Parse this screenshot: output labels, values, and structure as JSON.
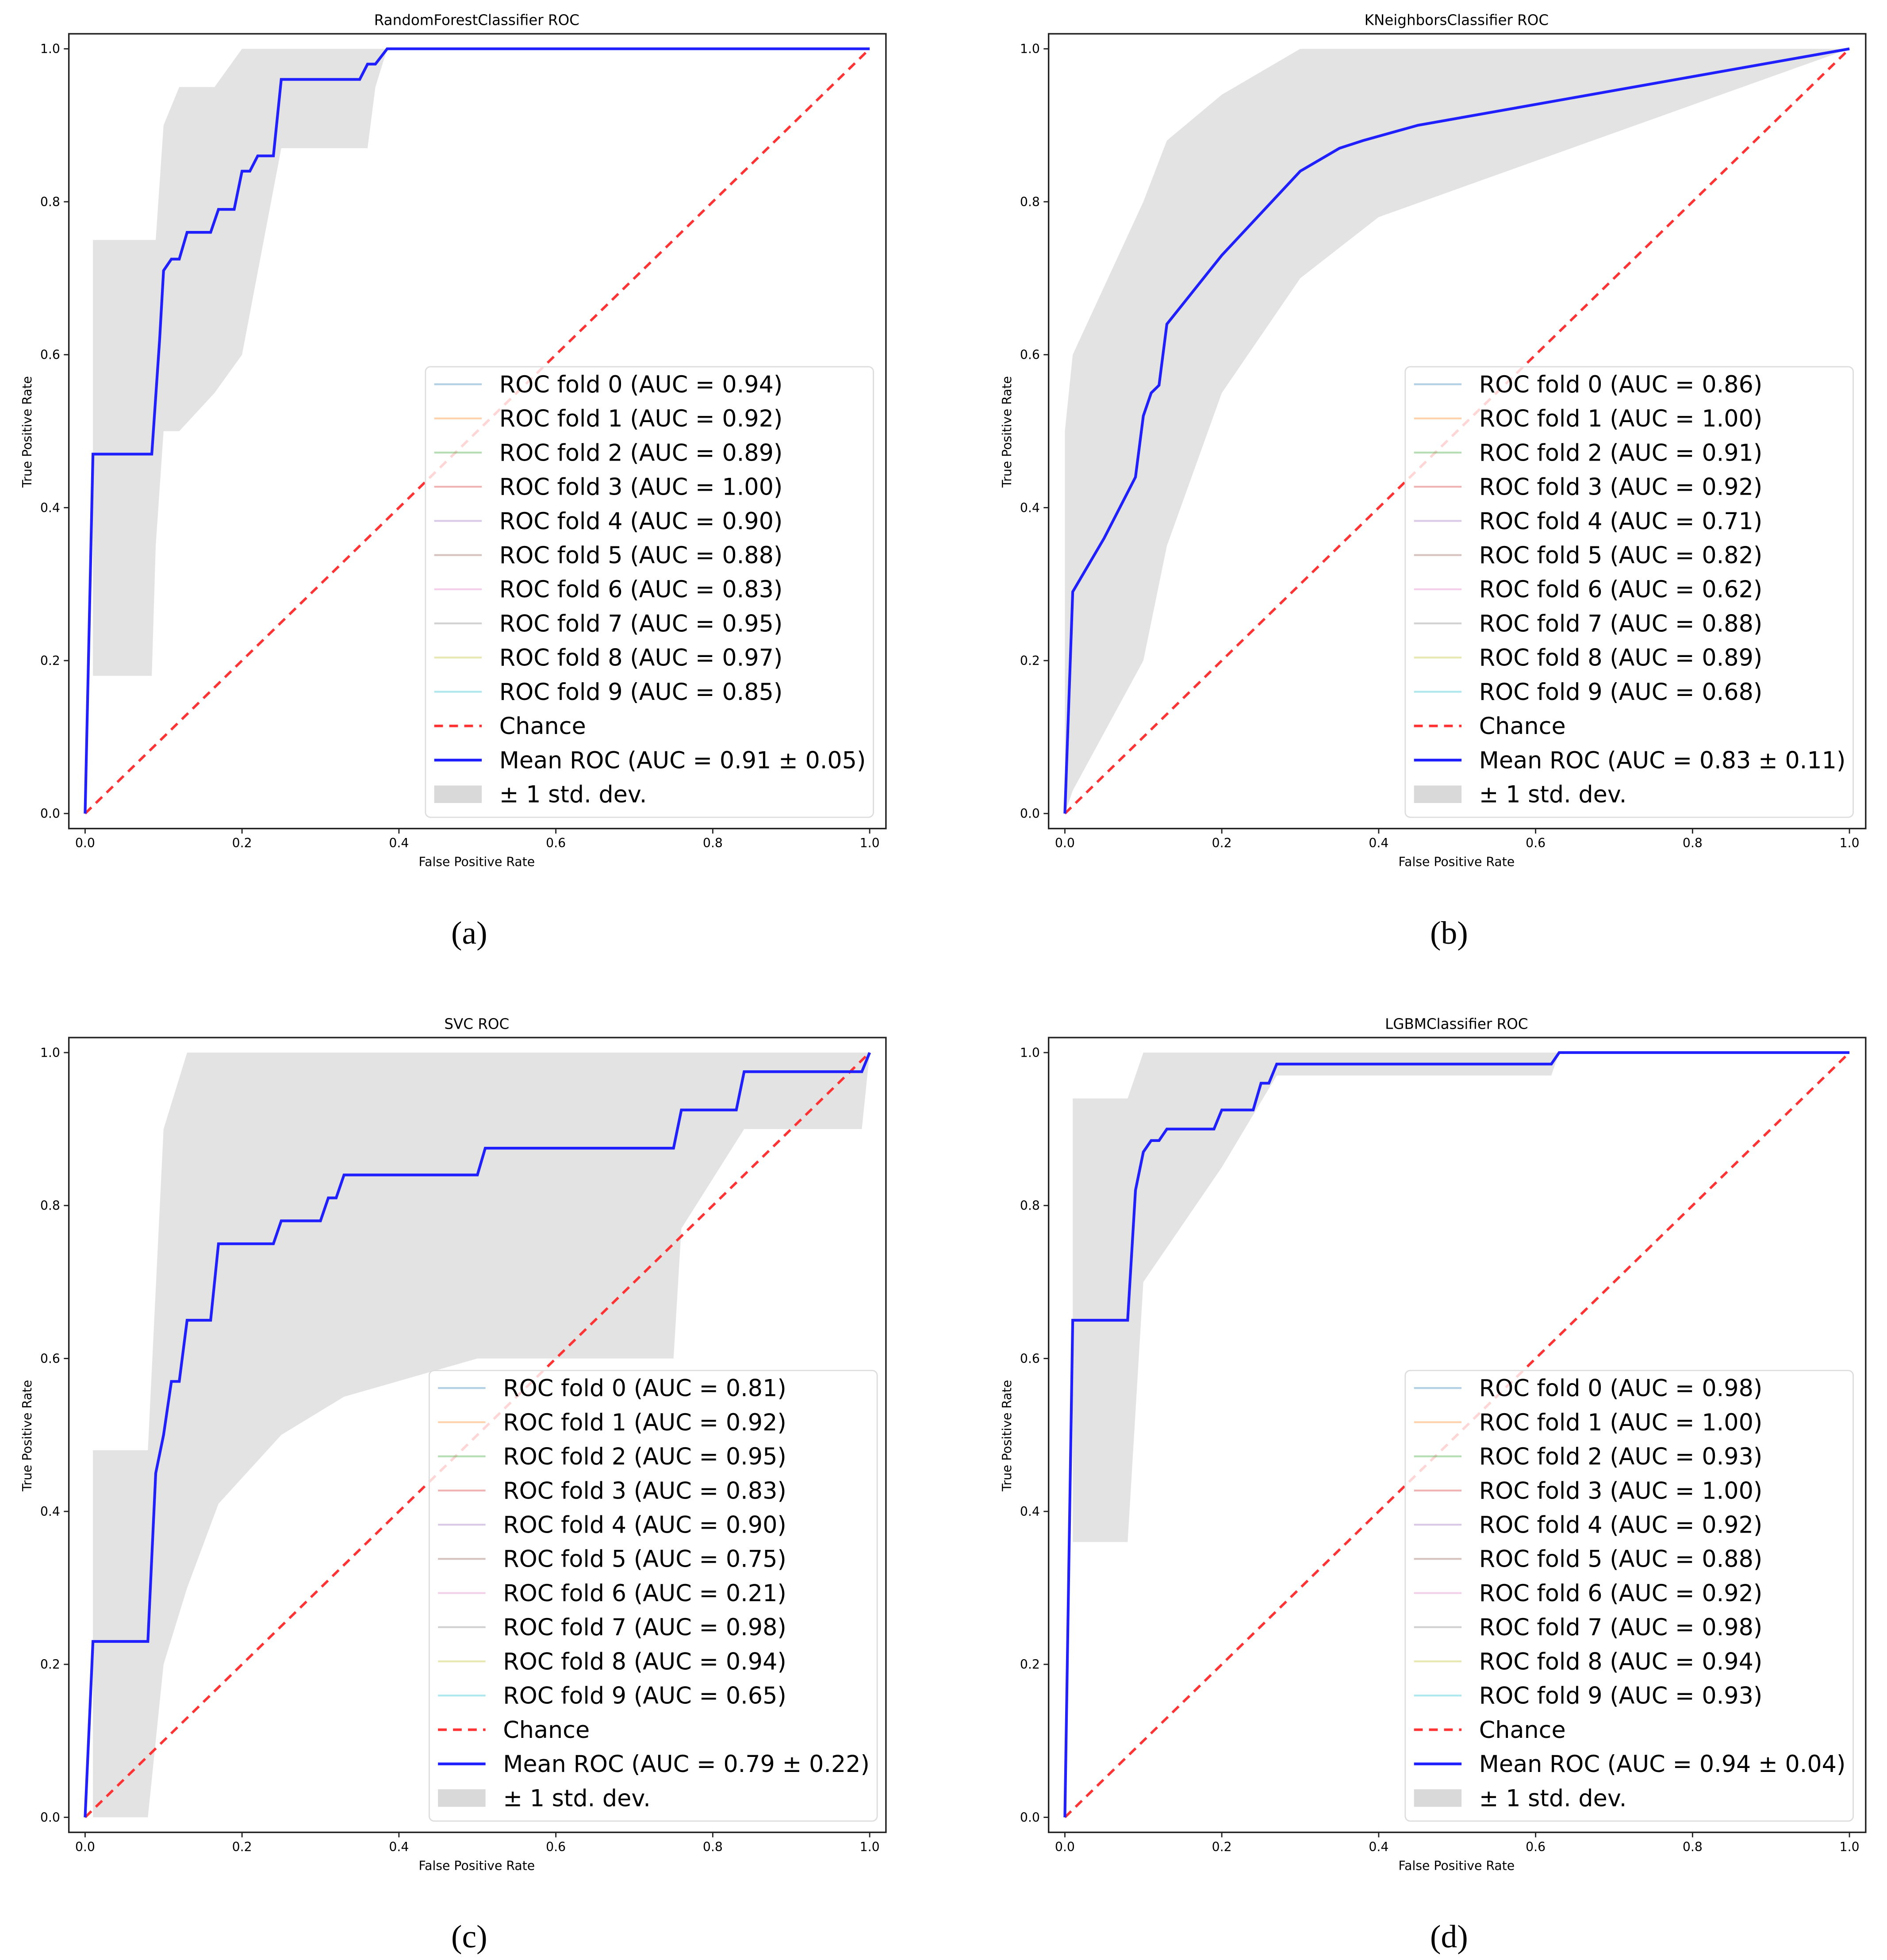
{
  "fold_colors": [
    "#1f77b4",
    "#ff7f0e",
    "#2ca02c",
    "#d62728",
    "#9467bd",
    "#8c564b",
    "#e377c2",
    "#7f7f7f",
    "#bcbd22",
    "#17becf"
  ],
  "chance_color": "#ff3333",
  "mean_color": "#2020ff",
  "band_color": "#d9d9d9",
  "chart_data": [
    {
      "type": "line",
      "caption": "(a)",
      "title": "RandomForestClassifier ROC",
      "xlabel": "False Positive Rate",
      "ylabel": "True Positive Rate",
      "xlim": [
        0,
        1
      ],
      "ylim": [
        0,
        1
      ],
      "xticks": [
        "0.0",
        "0.2",
        "0.4",
        "0.6",
        "0.8",
        "1.0"
      ],
      "yticks": [
        "0.0",
        "0.2",
        "0.4",
        "0.6",
        "0.8",
        "1.0"
      ],
      "legend_position": "lower-right",
      "folds": [
        "ROC fold 0 (AUC = 0.94)",
        "ROC fold 1 (AUC = 0.92)",
        "ROC fold 2 (AUC = 0.89)",
        "ROC fold 3 (AUC = 1.00)",
        "ROC fold 4 (AUC = 0.90)",
        "ROC fold 5 (AUC = 0.88)",
        "ROC fold 6 (AUC = 0.83)",
        "ROC fold 7 (AUC = 0.95)",
        "ROC fold 8 (AUC = 0.97)",
        "ROC fold 9 (AUC = 0.85)"
      ],
      "chance_label": "Chance",
      "mean_label": "Mean ROC (AUC = 0.91 ± 0.05)",
      "band_label": "± 1 std. dev.",
      "mean": [
        [
          0,
          0
        ],
        [
          0.01,
          0.47
        ],
        [
          0.085,
          0.47
        ],
        [
          0.095,
          0.62
        ],
        [
          0.1,
          0.71
        ],
        [
          0.11,
          0.725
        ],
        [
          0.12,
          0.725
        ],
        [
          0.13,
          0.76
        ],
        [
          0.16,
          0.76
        ],
        [
          0.17,
          0.79
        ],
        [
          0.19,
          0.79
        ],
        [
          0.2,
          0.84
        ],
        [
          0.21,
          0.84
        ],
        [
          0.22,
          0.86
        ],
        [
          0.24,
          0.86
        ],
        [
          0.25,
          0.96
        ],
        [
          0.35,
          0.96
        ],
        [
          0.36,
          0.98
        ],
        [
          0.37,
          0.98
        ],
        [
          0.385,
          1
        ],
        [
          1,
          1
        ]
      ],
      "band": [
        [
          0.01,
          0.18,
          0.75
        ],
        [
          0.085,
          0.18,
          0.75
        ],
        [
          0.09,
          0.35,
          0.75
        ],
        [
          0.1,
          0.5,
          0.9
        ],
        [
          0.12,
          0.5,
          0.95
        ],
        [
          0.165,
          0.55,
          0.95
        ],
        [
          0.2,
          0.6,
          1
        ],
        [
          0.25,
          0.87,
          1
        ],
        [
          0.36,
          0.87,
          1
        ],
        [
          0.37,
          0.95,
          1
        ],
        [
          0.385,
          1,
          1
        ],
        [
          1,
          1,
          1
        ]
      ]
    },
    {
      "type": "line",
      "caption": "(b)",
      "title": "KNeighborsClassifier ROC",
      "xlabel": "False Positive Rate",
      "ylabel": "True Positive Rate",
      "xlim": [
        0,
        1
      ],
      "ylim": [
        0,
        1
      ],
      "xticks": [
        "0.0",
        "0.2",
        "0.4",
        "0.6",
        "0.8",
        "1.0"
      ],
      "yticks": [
        "0.0",
        "0.2",
        "0.4",
        "0.6",
        "0.8",
        "1.0"
      ],
      "legend_position": "lower-right",
      "folds": [
        "ROC fold 0 (AUC = 0.86)",
        "ROC fold 1 (AUC = 1.00)",
        "ROC fold 2 (AUC = 0.91)",
        "ROC fold 3 (AUC = 0.92)",
        "ROC fold 4 (AUC = 0.71)",
        "ROC fold 5 (AUC = 0.82)",
        "ROC fold 6 (AUC = 0.62)",
        "ROC fold 7 (AUC = 0.88)",
        "ROC fold 8 (AUC = 0.89)",
        "ROC fold 9 (AUC = 0.68)"
      ],
      "chance_label": "Chance",
      "mean_label": "Mean ROC (AUC = 0.83 ± 0.11)",
      "band_label": "± 1 std. dev.",
      "mean": [
        [
          0,
          0
        ],
        [
          0.01,
          0.29
        ],
        [
          0.05,
          0.36
        ],
        [
          0.09,
          0.44
        ],
        [
          0.1,
          0.52
        ],
        [
          0.11,
          0.55
        ],
        [
          0.12,
          0.56
        ],
        [
          0.13,
          0.64
        ],
        [
          0.2,
          0.73
        ],
        [
          0.3,
          0.84
        ],
        [
          0.35,
          0.87
        ],
        [
          0.38,
          0.88
        ],
        [
          0.45,
          0.9
        ],
        [
          1,
          1
        ]
      ],
      "band": [
        [
          0,
          0,
          0.5
        ],
        [
          0.01,
          0.03,
          0.6
        ],
        [
          0.1,
          0.2,
          0.8
        ],
        [
          0.13,
          0.35,
          0.88
        ],
        [
          0.2,
          0.55,
          0.94
        ],
        [
          0.3,
          0.7,
          1
        ],
        [
          0.4,
          0.78,
          1
        ],
        [
          1,
          1,
          1
        ]
      ]
    },
    {
      "type": "line",
      "caption": "(c)",
      "title": "SVC ROC",
      "xlabel": "False Positive Rate",
      "ylabel": "True Positive Rate",
      "xlim": [
        0,
        1
      ],
      "ylim": [
        0,
        1
      ],
      "xticks": [
        "0.0",
        "0.2",
        "0.4",
        "0.6",
        "0.8",
        "1.0"
      ],
      "yticks": [
        "0.0",
        "0.2",
        "0.4",
        "0.6",
        "0.8",
        "1.0"
      ],
      "legend_position": "lower-right",
      "folds": [
        "ROC fold 0 (AUC = 0.81)",
        "ROC fold 1 (AUC = 0.92)",
        "ROC fold 2 (AUC = 0.95)",
        "ROC fold 3 (AUC = 0.83)",
        "ROC fold 4 (AUC = 0.90)",
        "ROC fold 5 (AUC = 0.75)",
        "ROC fold 6 (AUC = 0.21)",
        "ROC fold 7 (AUC = 0.98)",
        "ROC fold 8 (AUC = 0.94)",
        "ROC fold 9 (AUC = 0.65)"
      ],
      "chance_label": "Chance",
      "mean_label": "Mean ROC (AUC = 0.79 ± 0.22)",
      "band_label": "± 1 std. dev.",
      "mean": [
        [
          0,
          0
        ],
        [
          0.01,
          0.23
        ],
        [
          0.08,
          0.23
        ],
        [
          0.09,
          0.45
        ],
        [
          0.1,
          0.5
        ],
        [
          0.11,
          0.57
        ],
        [
          0.12,
          0.57
        ],
        [
          0.13,
          0.65
        ],
        [
          0.16,
          0.65
        ],
        [
          0.17,
          0.75
        ],
        [
          0.24,
          0.75
        ],
        [
          0.25,
          0.78
        ],
        [
          0.3,
          0.78
        ],
        [
          0.31,
          0.81
        ],
        [
          0.32,
          0.81
        ],
        [
          0.33,
          0.84
        ],
        [
          0.5,
          0.84
        ],
        [
          0.51,
          0.875
        ],
        [
          0.75,
          0.875
        ],
        [
          0.76,
          0.925
        ],
        [
          0.83,
          0.925
        ],
        [
          0.84,
          0.975
        ],
        [
          0.99,
          0.975
        ],
        [
          1,
          1
        ]
      ],
      "band": [
        [
          0.01,
          0,
          0.48
        ],
        [
          0.08,
          0,
          0.48
        ],
        [
          0.1,
          0.2,
          0.9
        ],
        [
          0.13,
          0.3,
          1
        ],
        [
          0.17,
          0.41,
          1
        ],
        [
          0.25,
          0.5,
          1
        ],
        [
          0.33,
          0.55,
          1
        ],
        [
          0.5,
          0.6,
          1
        ],
        [
          0.75,
          0.6,
          1
        ],
        [
          0.76,
          0.77,
          1
        ],
        [
          0.84,
          0.9,
          1
        ],
        [
          0.99,
          0.9,
          1
        ],
        [
          1,
          1,
          1
        ]
      ]
    },
    {
      "type": "line",
      "caption": "(d)",
      "title": "LGBMClassifier ROC",
      "xlabel": "False Positive Rate",
      "ylabel": "True Positive Rate",
      "xlim": [
        0,
        1
      ],
      "ylim": [
        0,
        1
      ],
      "xticks": [
        "0.0",
        "0.2",
        "0.4",
        "0.6",
        "0.8",
        "1.0"
      ],
      "yticks": [
        "0.0",
        "0.2",
        "0.4",
        "0.6",
        "0.8",
        "1.0"
      ],
      "legend_position": "lower-right",
      "folds": [
        "ROC fold 0 (AUC = 0.98)",
        "ROC fold 1 (AUC = 1.00)",
        "ROC fold 2 (AUC = 0.93)",
        "ROC fold 3 (AUC = 1.00)",
        "ROC fold 4 (AUC = 0.92)",
        "ROC fold 5 (AUC = 0.88)",
        "ROC fold 6 (AUC = 0.92)",
        "ROC fold 7 (AUC = 0.98)",
        "ROC fold 8 (AUC = 0.94)",
        "ROC fold 9 (AUC = 0.93)"
      ],
      "chance_label": "Chance",
      "mean_label": "Mean ROC (AUC = 0.94 ± 0.04)",
      "band_label": "± 1 std. dev.",
      "mean": [
        [
          0,
          0
        ],
        [
          0.01,
          0.65
        ],
        [
          0.08,
          0.65
        ],
        [
          0.09,
          0.82
        ],
        [
          0.1,
          0.87
        ],
        [
          0.11,
          0.885
        ],
        [
          0.12,
          0.885
        ],
        [
          0.13,
          0.9
        ],
        [
          0.19,
          0.9
        ],
        [
          0.2,
          0.925
        ],
        [
          0.24,
          0.925
        ],
        [
          0.25,
          0.96
        ],
        [
          0.26,
          0.96
        ],
        [
          0.27,
          0.985
        ],
        [
          0.62,
          0.985
        ],
        [
          0.63,
          1
        ],
        [
          1,
          1
        ]
      ],
      "band": [
        [
          0.01,
          0.36,
          0.94
        ],
        [
          0.08,
          0.36,
          0.94
        ],
        [
          0.1,
          0.7,
          1
        ],
        [
          0.2,
          0.85,
          1
        ],
        [
          0.27,
          0.97,
          1
        ],
        [
          0.62,
          0.97,
          1
        ],
        [
          0.63,
          1,
          1
        ],
        [
          1,
          1,
          1
        ]
      ]
    }
  ]
}
